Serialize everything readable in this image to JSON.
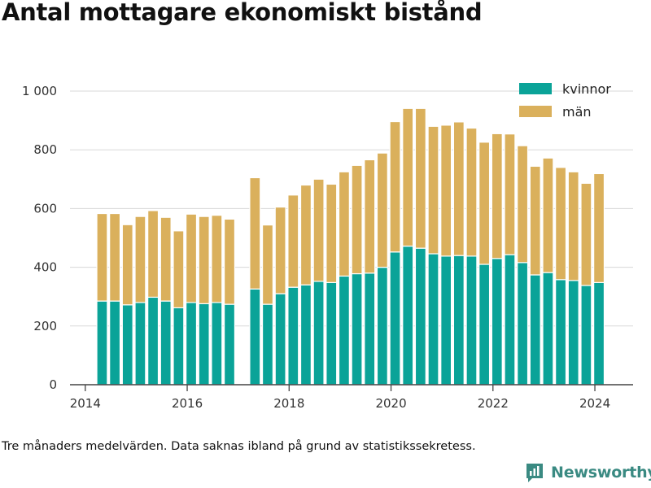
{
  "title": "Antal mottagare ekonomiskt bistånd",
  "footnote": "Tre månaders medelvärden. Data saknas ibland på grund av statistikssekretess.",
  "brand": {
    "name": "Newsworthy",
    "color": "#3a8a82"
  },
  "colors": {
    "kvinnor": "#0aa398",
    "man": "#dab05c",
    "grid": "#d8d8d8",
    "axis": "#333333"
  },
  "chart_data": {
    "type": "bar",
    "stacked": true,
    "title": "Antal mottagare ekonomiskt bistånd",
    "xlabel": "",
    "ylabel": "",
    "ylim": [
      0,
      1000
    ],
    "xlim": [
      2013.7,
      2024.75
    ],
    "y_ticks": [
      {
        "value": 0,
        "label": "0"
      },
      {
        "value": 200,
        "label": "200"
      },
      {
        "value": 400,
        "label": "400"
      },
      {
        "value": 600,
        "label": "600"
      },
      {
        "value": 800,
        "label": "800"
      },
      {
        "value": 1000,
        "label": "1 000"
      }
    ],
    "x_ticks": [
      {
        "value": 2014,
        "label": "2014"
      },
      {
        "value": 2016,
        "label": "2016"
      },
      {
        "value": 2018,
        "label": "2018"
      },
      {
        "value": 2020,
        "label": "2020"
      },
      {
        "value": 2022,
        "label": "2022"
      },
      {
        "value": 2024,
        "label": "2024"
      }
    ],
    "legend": {
      "position": "top-right"
    },
    "x": [
      2014.33,
      2014.58,
      2014.83,
      2015.08,
      2015.33,
      2015.58,
      2015.83,
      2016.08,
      2016.33,
      2016.58,
      2016.83,
      2017.33,
      2017.58,
      2017.83,
      2018.08,
      2018.33,
      2018.58,
      2018.83,
      2019.08,
      2019.33,
      2019.58,
      2019.83,
      2020.08,
      2020.33,
      2020.58,
      2020.83,
      2021.08,
      2021.33,
      2021.58,
      2021.83,
      2022.08,
      2022.33,
      2022.58,
      2022.83,
      2023.08,
      2023.33,
      2023.58,
      2023.83,
      2024.08
    ],
    "series": [
      {
        "name": "kvinnor",
        "values": [
          285,
          285,
          272,
          280,
          298,
          285,
          262,
          280,
          276,
          280,
          274,
          326,
          274,
          310,
          332,
          340,
          352,
          348,
          370,
          378,
          380,
          400,
          452,
          472,
          465,
          446,
          438,
          440,
          438,
          410,
          430,
          443,
          416,
          374,
          382,
          358,
          355,
          338,
          348
        ]
      },
      {
        "name": "män",
        "values": [
          298,
          298,
          273,
          293,
          295,
          285,
          262,
          301,
          297,
          297,
          290,
          379,
          270,
          295,
          314,
          340,
          348,
          335,
          355,
          369,
          386,
          389,
          444,
          469,
          476,
          434,
          446,
          455,
          436,
          416,
          425,
          411,
          398,
          370,
          390,
          382,
          370,
          348,
          371
        ]
      }
    ]
  }
}
